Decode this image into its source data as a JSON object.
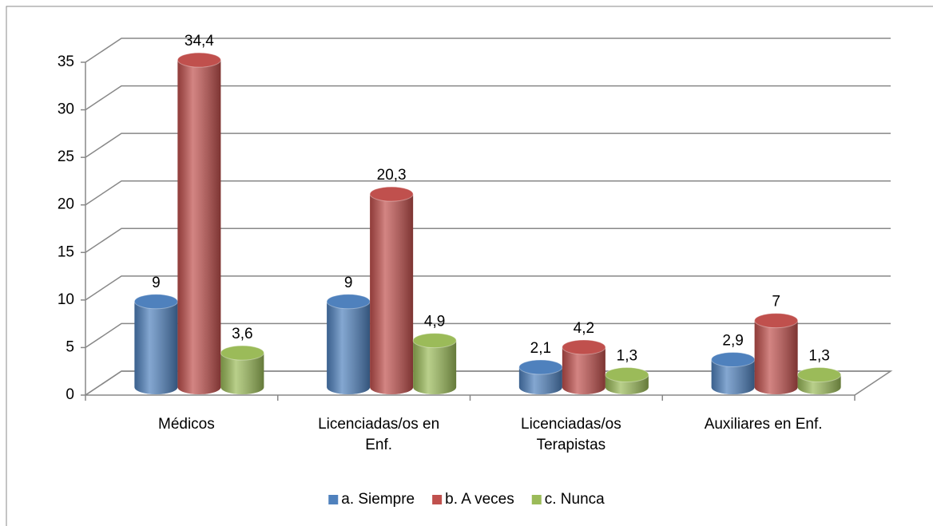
{
  "chart_data": {
    "type": "bar3d",
    "categories": [
      "Médicos",
      "Licenciadas/os en Enf.",
      "Licenciadas/os Terapistas",
      "Auxiliares en Enf."
    ],
    "series": [
      {
        "name": "a. Siempre",
        "color": "#4f81bd",
        "values": [
          9,
          9,
          2.1,
          2.9
        ],
        "value_labels": [
          "9",
          "9",
          "2,1",
          "2,9"
        ]
      },
      {
        "name": "b. A veces",
        "color": "#c0504d",
        "values": [
          34.4,
          20.3,
          4.2,
          7
        ],
        "value_labels": [
          "34,4",
          "20,3",
          "4,2",
          "7"
        ]
      },
      {
        "name": "c. Nunca",
        "color": "#9bbb59",
        "values": [
          3.6,
          4.9,
          1.3,
          1.3
        ],
        "value_labels": [
          "3,6",
          "4,9",
          "1,3",
          "1,3"
        ]
      }
    ],
    "ylim": [
      0,
      35
    ],
    "yticks": [
      0,
      5,
      10,
      15,
      20,
      25,
      30,
      35
    ],
    "grid": true,
    "legend": "bottom"
  }
}
